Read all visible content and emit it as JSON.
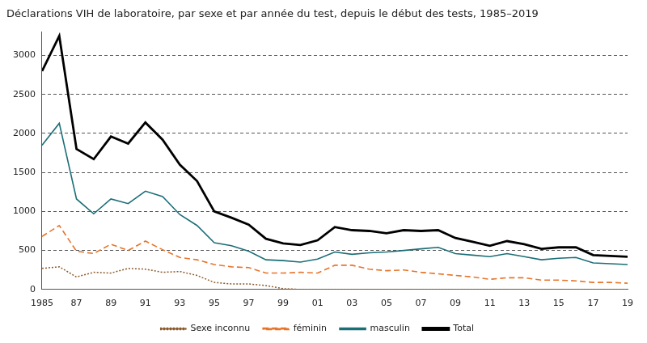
{
  "chart_data": {
    "type": "line",
    "title": "Déclarations VIH de laboratoire, par sexe et par année du test, depuis le début des tests, 1985–2019",
    "categories": [
      "1985",
      null,
      "87",
      null,
      "89",
      null,
      "91",
      null,
      "93",
      null,
      "95",
      null,
      "97",
      null,
      "99",
      null,
      "01",
      null,
      "03",
      null,
      "05",
      null,
      "07",
      null,
      "09",
      null,
      "11",
      null,
      "13",
      null,
      "15",
      null,
      "17",
      null,
      "19"
    ],
    "series": [
      {
        "name": "Total",
        "color": "#000000",
        "line_style": "solid",
        "values": [
          2800,
          3250,
          1800,
          1670,
          1960,
          1870,
          2140,
          1920,
          1600,
          1390,
          1000,
          920,
          830,
          650,
          590,
          570,
          630,
          800,
          760,
          750,
          720,
          760,
          750,
          760,
          660,
          610,
          560,
          620,
          580,
          520,
          540,
          540,
          440,
          430,
          420
        ]
      },
      {
        "name": "masculin",
        "color": "#1b6e77",
        "line_style": "solid",
        "values": [
          1850,
          2130,
          1160,
          970,
          1160,
          1100,
          1260,
          1190,
          960,
          820,
          600,
          560,
          490,
          380,
          370,
          350,
          390,
          480,
          450,
          470,
          480,
          500,
          520,
          540,
          460,
          440,
          420,
          460,
          420,
          380,
          400,
          410,
          340,
          330,
          320
        ]
      },
      {
        "name": "féminin",
        "color": "#e8742a",
        "line_style": "dashed",
        "values": [
          680,
          820,
          490,
          460,
          580,
          500,
          620,
          510,
          410,
          380,
          320,
          290,
          280,
          210,
          210,
          220,
          210,
          310,
          310,
          260,
          240,
          250,
          220,
          200,
          180,
          160,
          130,
          150,
          150,
          120,
          120,
          110,
          90,
          90,
          80
        ]
      },
      {
        "name": "Sexe inconnu",
        "color": "#8b5a2b",
        "line_style": "dotted",
        "values": [
          270,
          290,
          160,
          220,
          210,
          270,
          260,
          220,
          230,
          180,
          90,
          70,
          70,
          50,
          10,
          0,
          0,
          0,
          0,
          0,
          0,
          0,
          0,
          0,
          0,
          0,
          0,
          0,
          0,
          0,
          0,
          0,
          0,
          0,
          0
        ]
      }
    ],
    "ylim": [
      0,
      3300
    ],
    "yticks": [
      0,
      500,
      1000,
      1500,
      2000,
      2500,
      3000
    ],
    "grid": true,
    "legend": "bottom",
    "marker": "none"
  }
}
